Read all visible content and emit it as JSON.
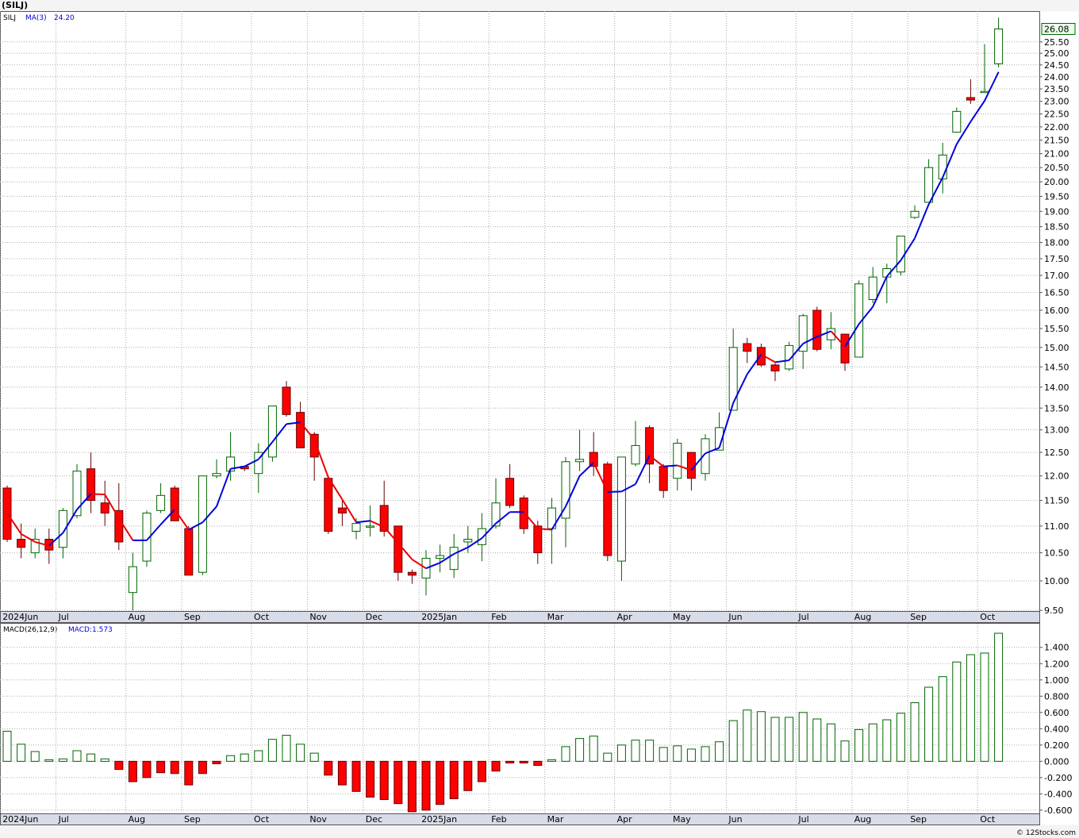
{
  "chart_data": [
    {
      "type": "candlestick",
      "title": "(SILJ)",
      "symbol": "SILJ",
      "categories": [
        "2024Jun",
        null,
        null,
        null,
        "Jul",
        null,
        null,
        null,
        null,
        "Aug",
        null,
        null,
        null,
        "Sep",
        null,
        null,
        null,
        null,
        "Oct",
        null,
        null,
        null,
        "Nov",
        null,
        null,
        null,
        "Dec",
        null,
        null,
        null,
        "2025Jan",
        null,
        null,
        null,
        null,
        "Feb",
        null,
        null,
        null,
        "Mar",
        null,
        null,
        null,
        null,
        "Apr",
        null,
        null,
        null,
        "May",
        null,
        null,
        null,
        "Jun",
        null,
        null,
        null,
        null,
        "Jul",
        null,
        null,
        null,
        "Aug",
        null,
        null,
        null,
        "Sep",
        null,
        null,
        null,
        null,
        "Oct",
        null
      ],
      "open": [
        11.75,
        10.75,
        10.5,
        10.75,
        10.6,
        11.2,
        12.15,
        11.45,
        11.3,
        9.8,
        10.35,
        11.3,
        11.75,
        10.95,
        10.15,
        12.0,
        12.1,
        12.2,
        12.05,
        12.4,
        14.0,
        13.4,
        12.9,
        11.95,
        11.35,
        10.9,
        10.98,
        11.4,
        11.0,
        10.15,
        10.05,
        10.4,
        10.2,
        10.7,
        10.65,
        11.0,
        11.95,
        11.55,
        11.0,
        10.95,
        11.15,
        12.3,
        12.5,
        12.25,
        10.35,
        12.25,
        13.05,
        12.2,
        11.95,
        12.5,
        12.05,
        12.55,
        13.45,
        15.1,
        15.0,
        14.55,
        14.45,
        14.9,
        16.0,
        15.2,
        15.35,
        14.75,
        16.3,
        16.95,
        17.1,
        18.8,
        19.3,
        20.1,
        21.8,
        23.15,
        23.35,
        24.55
      ],
      "high": [
        11.8,
        11.05,
        10.95,
        10.95,
        11.35,
        12.25,
        12.5,
        11.9,
        11.85,
        10.5,
        11.3,
        11.85,
        11.8,
        11.0,
        12.0,
        12.35,
        12.95,
        12.2,
        12.7,
        13.55,
        14.15,
        13.65,
        12.95,
        12.0,
        11.5,
        11.15,
        11.4,
        11.9,
        11.0,
        10.2,
        10.55,
        10.65,
        10.85,
        11.0,
        11.25,
        11.95,
        12.25,
        11.6,
        11.1,
        11.55,
        12.4,
        13.0,
        12.95,
        12.3,
        12.4,
        13.2,
        13.1,
        12.25,
        12.8,
        12.5,
        12.9,
        13.4,
        15.5,
        15.25,
        15.1,
        14.6,
        15.15,
        15.9,
        16.1,
        15.95,
        15.35,
        16.85,
        17.25,
        17.35,
        18.2,
        19.2,
        20.8,
        21.4,
        22.75,
        23.9,
        25.4,
        26.6
      ],
      "low": [
        10.7,
        10.4,
        10.4,
        10.3,
        10.4,
        11.15,
        11.25,
        11.0,
        10.55,
        9.5,
        10.25,
        11.25,
        11.1,
        10.1,
        10.1,
        11.95,
        11.9,
        12.1,
        11.65,
        12.3,
        13.3,
        12.6,
        11.9,
        10.85,
        11.0,
        10.75,
        10.8,
        10.8,
        10.0,
        9.95,
        9.75,
        10.15,
        10.05,
        10.5,
        10.35,
        10.95,
        11.35,
        10.85,
        10.3,
        10.3,
        10.6,
        12.1,
        12.0,
        10.35,
        10.0,
        12.2,
        11.85,
        11.55,
        11.7,
        11.7,
        11.9,
        12.55,
        13.45,
        14.6,
        14.5,
        14.15,
        14.4,
        14.45,
        14.9,
        14.95,
        14.4,
        14.75,
        16.2,
        16.2,
        17.0,
        18.75,
        19.3,
        19.6,
        21.8,
        22.9,
        23.35,
        24.4
      ],
      "close": [
        10.75,
        10.6,
        10.75,
        10.55,
        11.3,
        12.1,
        11.5,
        11.25,
        10.7,
        10.25,
        11.25,
        11.6,
        11.1,
        10.1,
        12.0,
        12.05,
        12.4,
        12.15,
        12.5,
        13.55,
        13.35,
        12.6,
        12.4,
        10.9,
        11.25,
        11.05,
        11.0,
        10.9,
        10.15,
        10.1,
        10.4,
        10.45,
        10.6,
        10.75,
        10.95,
        11.45,
        11.4,
        10.95,
        10.5,
        11.35,
        12.3,
        12.35,
        12.2,
        10.45,
        12.4,
        12.65,
        12.25,
        11.7,
        12.7,
        11.95,
        12.8,
        13.05,
        15.0,
        14.9,
        14.55,
        14.4,
        15.05,
        15.85,
        14.95,
        15.5,
        14.6,
        16.75,
        16.95,
        17.2,
        18.2,
        19.0,
        20.5,
        20.95,
        22.6,
        23.05,
        23.4,
        26.08
      ],
      "up_color": "#006400",
      "down_color": "#ff0000",
      "ma": {
        "name": "MA(3)",
        "legend_value": "24.20",
        "up_color": "#0000dd",
        "down_color": "#ee0000",
        "values": [
          11.25,
          10.85,
          10.7,
          10.63,
          10.87,
          11.32,
          11.63,
          11.62,
          11.15,
          10.73,
          10.73,
          11.03,
          11.32,
          10.93,
          11.07,
          11.38,
          12.15,
          12.2,
          12.35,
          12.73,
          13.13,
          13.17,
          12.78,
          11.97,
          11.52,
          11.07,
          11.1,
          10.98,
          10.68,
          10.38,
          10.22,
          10.32,
          10.48,
          10.6,
          10.77,
          11.05,
          11.27,
          11.27,
          10.95,
          10.93,
          11.38,
          12.0,
          12.28,
          11.67,
          11.68,
          11.83,
          12.43,
          12.2,
          12.22,
          12.12,
          12.48,
          12.6,
          13.62,
          14.32,
          14.82,
          14.62,
          14.67,
          15.1,
          15.28,
          15.43,
          15.02,
          15.62,
          16.1,
          16.97,
          17.45,
          18.13,
          19.23,
          20.15,
          21.35,
          22.2,
          23.02,
          24.2
        ]
      },
      "log_scale": true,
      "grid": true,
      "ylim": [
        9.49,
        26.9
      ],
      "yticks": [
        {
          "value": 9.5,
          "label": "9.50"
        },
        {
          "value": 10,
          "label": "10.00"
        },
        {
          "value": 10.5,
          "label": "10.50"
        },
        {
          "value": 11,
          "label": "11.00"
        },
        {
          "value": 11.5,
          "label": "11.50"
        },
        {
          "value": 12,
          "label": "12.00"
        },
        {
          "value": 12.5,
          "label": "12.50"
        },
        {
          "value": 13,
          "label": "13.00"
        },
        {
          "value": 13.5,
          "label": "13.50"
        },
        {
          "value": 14,
          "label": "14.00"
        },
        {
          "value": 14.5,
          "label": "14.50"
        },
        {
          "value": 15,
          "label": "15.00"
        },
        {
          "value": 15.5,
          "label": "15.50"
        },
        {
          "value": 16,
          "label": "16.00"
        },
        {
          "value": 16.5,
          "label": "16.50"
        },
        {
          "value": 17,
          "label": "17.00"
        },
        {
          "value": 17.5,
          "label": "17.50"
        },
        {
          "value": 18,
          "label": "18.00"
        },
        {
          "value": 18.5,
          "label": "18.50"
        },
        {
          "value": 19,
          "label": "19.00"
        },
        {
          "value": 19.5,
          "label": "19.50"
        },
        {
          "value": 20,
          "label": "20.00"
        },
        {
          "value": 20.5,
          "label": "20.50"
        },
        {
          "value": 21,
          "label": "21.00"
        },
        {
          "value": 21.5,
          "label": "21.50"
        },
        {
          "value": 22,
          "label": "22.00"
        },
        {
          "value": 22.5,
          "label": "22.50"
        },
        {
          "value": 23,
          "label": "23.00"
        },
        {
          "value": 23.5,
          "label": "23.50"
        },
        {
          "value": 24,
          "label": "24.00"
        },
        {
          "value": 24.5,
          "label": "24.50"
        },
        {
          "value": 25,
          "label": "25.00"
        },
        {
          "value": 25.5,
          "label": "25.50"
        }
      ],
      "source": "© 12Stocks.com"
    },
    {
      "type": "bar",
      "name": "MACD(26,12,9)",
      "legend_value": "MACD:1.573",
      "up_color": "#006400",
      "down_color": "#ff0000",
      "grid": true,
      "values": [
        0.37,
        0.21,
        0.12,
        0.02,
        0.03,
        0.13,
        0.09,
        0.03,
        -0.1,
        -0.25,
        -0.2,
        -0.14,
        -0.15,
        -0.29,
        -0.15,
        -0.03,
        0.07,
        0.09,
        0.13,
        0.27,
        0.32,
        0.21,
        0.1,
        -0.17,
        -0.29,
        -0.37,
        -0.44,
        -0.47,
        -0.52,
        -0.62,
        -0.6,
        -0.53,
        -0.46,
        -0.36,
        -0.25,
        -0.12,
        -0.02,
        -0.02,
        -0.05,
        0.02,
        0.18,
        0.28,
        0.31,
        0.1,
        0.2,
        0.26,
        0.26,
        0.17,
        0.19,
        0.15,
        0.18,
        0.24,
        0.5,
        0.63,
        0.61,
        0.54,
        0.54,
        0.6,
        0.52,
        0.46,
        0.25,
        0.39,
        0.46,
        0.51,
        0.59,
        0.72,
        0.91,
        1.04,
        1.22,
        1.31,
        1.33,
        1.573
      ],
      "ylim": [
        -0.64,
        1.69
      ],
      "yticks": [
        {
          "value": -0.6,
          "label": "-0.600"
        },
        {
          "value": -0.4,
          "label": "-0.400"
        },
        {
          "value": -0.2,
          "label": "-0.200"
        },
        {
          "value": 0,
          "label": "0.000"
        },
        {
          "value": 0.2,
          "label": "0.200"
        },
        {
          "value": 0.4,
          "label": "0.400"
        },
        {
          "value": 0.6,
          "label": "0.600"
        },
        {
          "value": 0.8,
          "label": "0.800"
        },
        {
          "value": 1.0,
          "label": "1.000"
        },
        {
          "value": 1.2,
          "label": "1.200"
        },
        {
          "value": 1.4,
          "label": "1.400"
        }
      ]
    }
  ]
}
